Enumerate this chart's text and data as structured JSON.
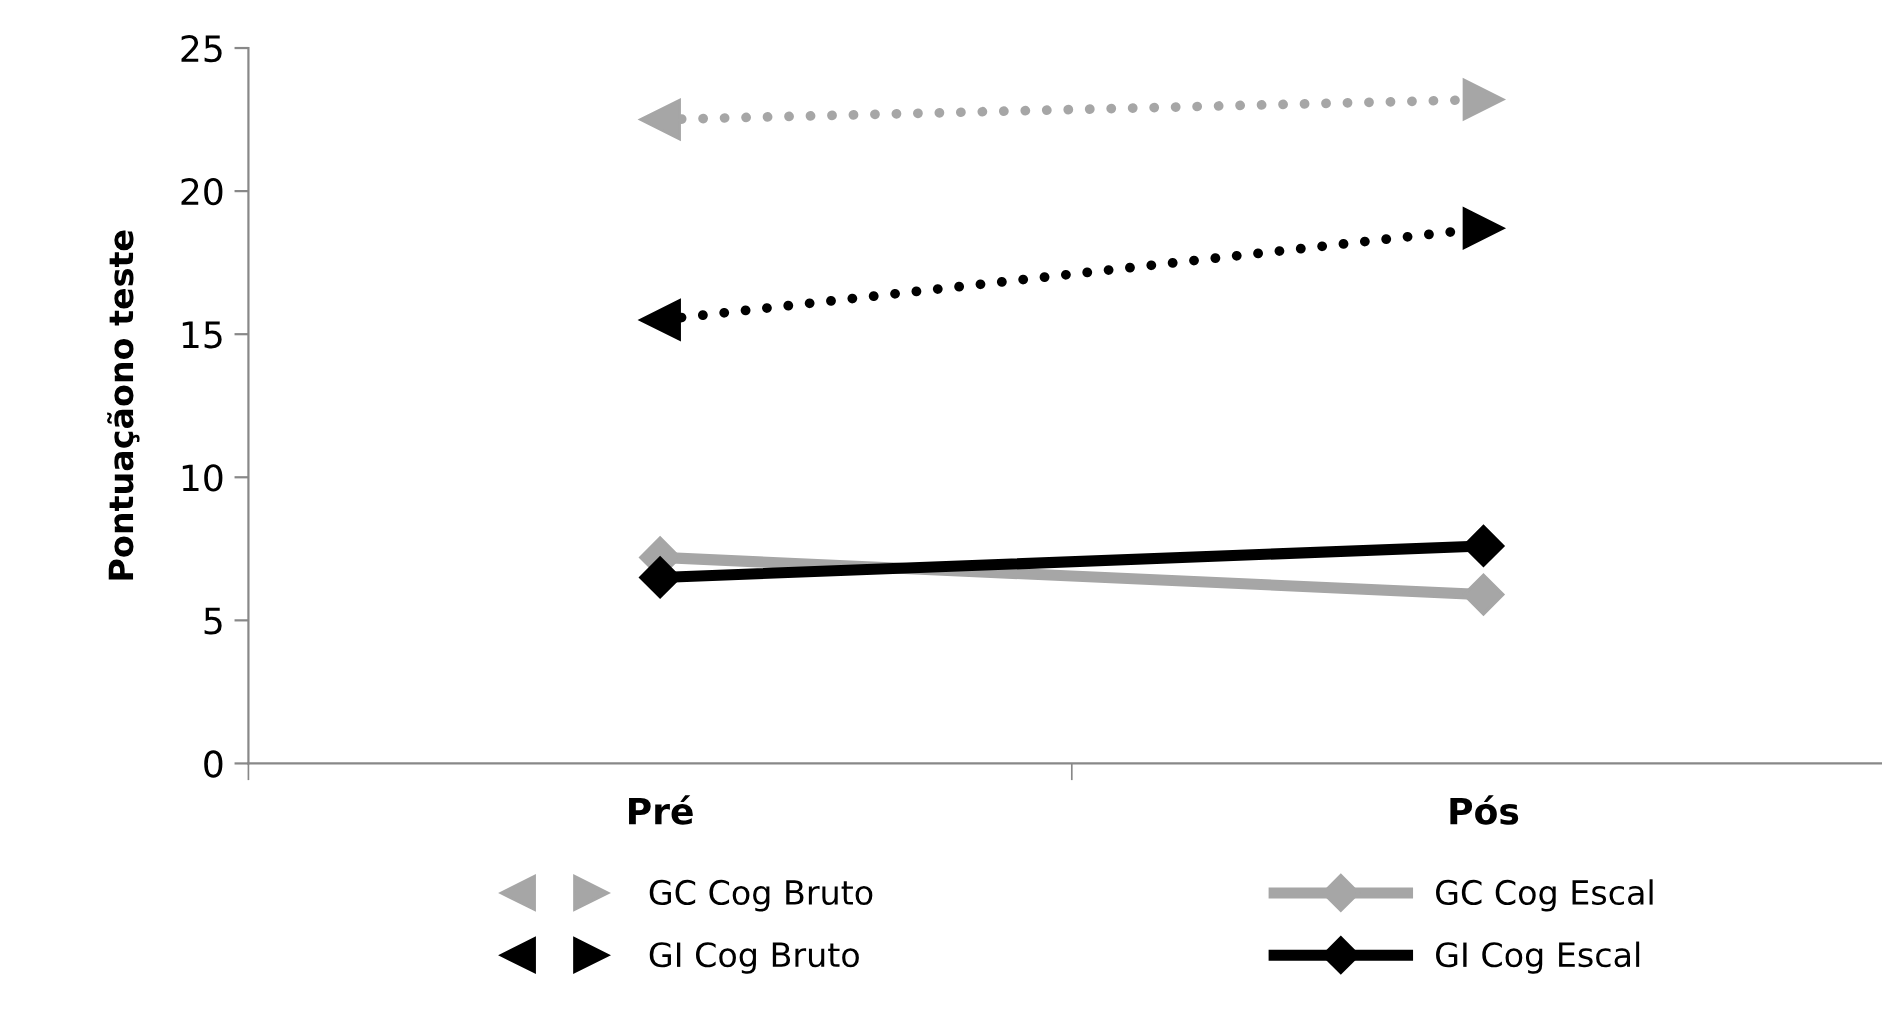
{
  "chart_data": {
    "type": "line",
    "ylabel": "Pontuaçãono teste",
    "categories": [
      "Pré",
      "Pós"
    ],
    "ylim": [
      0,
      25
    ],
    "yticks": [
      0,
      5,
      10,
      15,
      20,
      25
    ],
    "grid": false,
    "legend": "bottom",
    "series": [
      {
        "name": "GC Cog Bruto",
        "color": "#a6a6a6",
        "values": [
          22.5,
          23.2
        ],
        "marker": "triangle",
        "line_style": "dotted"
      },
      {
        "name": "GI Cog Bruto",
        "color": "#000000",
        "values": [
          15.5,
          18.7
        ],
        "marker": "triangle",
        "line_style": "dotted"
      },
      {
        "name": "GC Cog Escal",
        "color": "#a6a6a6",
        "values": [
          7.2,
          5.9
        ],
        "marker": "diamond",
        "line_style": "solid"
      },
      {
        "name": "GI Cog Escal",
        "color": "#000000",
        "values": [
          6.5,
          7.6
        ],
        "marker": "diamond",
        "line_style": "solid"
      }
    ]
  }
}
